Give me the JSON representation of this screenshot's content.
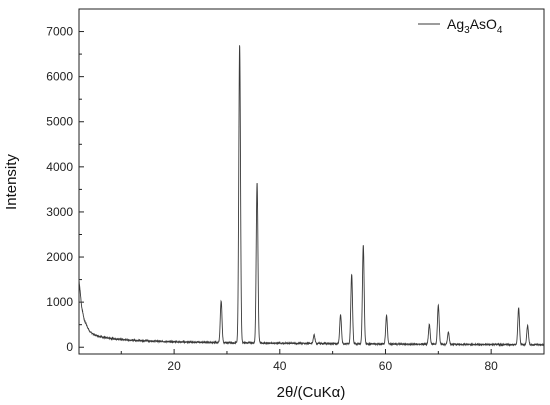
{
  "chart_data": {
    "type": "line",
    "xlabel": "2θ/(CuKα)",
    "ylabel": "Intensity",
    "xlim": [
      2,
      90
    ],
    "ylim": [
      -150,
      7500
    ],
    "x_ticks": [
      20,
      40,
      60,
      80
    ],
    "y_ticks": [
      0,
      1000,
      2000,
      3000,
      4000,
      5000,
      6000,
      7000
    ],
    "x_tick_labels": [
      "20",
      "40",
      "60",
      "80"
    ],
    "y_tick_labels": [
      "0",
      "1000",
      "2000",
      "3000",
      "4000",
      "5000",
      "6000",
      "7000"
    ],
    "grid": false,
    "legend_position": "top-right",
    "series": [
      {
        "name": "Ag3AsO4",
        "legend_parts": {
          "a": "Ag",
          "b": "3",
          "c": "AsO",
          "d": "4"
        },
        "color": "#3a3a3a",
        "background": [
          [
            2,
            1500
          ],
          [
            2.5,
            900
          ],
          [
            3,
            600
          ],
          [
            4,
            350
          ],
          [
            5,
            270
          ],
          [
            7,
            210
          ],
          [
            10,
            170
          ],
          [
            15,
            140
          ],
          [
            20,
            120
          ],
          [
            25,
            110
          ],
          [
            30,
            100
          ],
          [
            40,
            90
          ],
          [
            50,
            80
          ],
          [
            60,
            70
          ],
          [
            70,
            65
          ],
          [
            80,
            60
          ],
          [
            90,
            55
          ]
        ],
        "peaks": [
          {
            "x": 28.9,
            "y": 1030
          },
          {
            "x": 32.4,
            "y": 6720
          },
          {
            "x": 35.7,
            "y": 3650
          },
          {
            "x": 46.5,
            "y": 270
          },
          {
            "x": 51.5,
            "y": 720
          },
          {
            "x": 53.6,
            "y": 1620
          },
          {
            "x": 55.8,
            "y": 2260
          },
          {
            "x": 60.2,
            "y": 700
          },
          {
            "x": 68.3,
            "y": 500
          },
          {
            "x": 70.0,
            "y": 930
          },
          {
            "x": 71.9,
            "y": 330
          },
          {
            "x": 85.2,
            "y": 870
          },
          {
            "x": 86.9,
            "y": 480
          }
        ]
      }
    ]
  }
}
